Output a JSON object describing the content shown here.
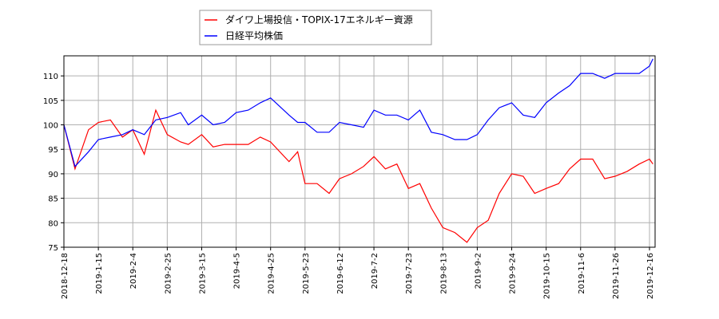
{
  "chart_data": {
    "type": "line",
    "title": "",
    "xlabel": "",
    "ylabel": "",
    "ylim": [
      75,
      114.1
    ],
    "yticks": [
      75,
      80,
      85,
      90,
      95,
      100,
      105,
      110
    ],
    "xticks": [
      "2018-12-18",
      "2019-1-15",
      "2019-2-4",
      "2019-2-25",
      "2019-3-15",
      "2019-4-5",
      "2019-4-25",
      "2019-5-23",
      "2019-6-12",
      "2019-7-2",
      "2019-7-23",
      "2019-8-13",
      "2019-9-2",
      "2019-9-24",
      "2019-10-15",
      "2019-11-6",
      "2019-11-26",
      "2019-12-16"
    ],
    "grid": true,
    "legend_position": "top-center",
    "x": [
      "2018-12-18",
      "2018-12-27",
      "2019-1-7",
      "2019-1-15",
      "2019-1-22",
      "2019-1-29",
      "2019-2-4",
      "2019-2-11",
      "2019-2-18",
      "2019-2-25",
      "2019-3-4",
      "2019-3-8",
      "2019-3-15",
      "2019-3-22",
      "2019-3-29",
      "2019-4-5",
      "2019-4-12",
      "2019-4-19",
      "2019-4-25",
      "2019-5-10",
      "2019-5-17",
      "2019-5-23",
      "2019-5-30",
      "2019-6-6",
      "2019-6-12",
      "2019-6-19",
      "2019-6-26",
      "2019-7-2",
      "2019-7-9",
      "2019-7-16",
      "2019-7-23",
      "2019-7-30",
      "2019-8-6",
      "2019-8-13",
      "2019-8-20",
      "2019-8-27",
      "2019-9-2",
      "2019-9-9",
      "2019-9-16",
      "2019-9-24",
      "2019-10-1",
      "2019-10-8",
      "2019-10-15",
      "2019-10-23",
      "2019-10-30",
      "2019-11-6",
      "2019-11-13",
      "2019-11-20",
      "2019-11-26",
      "2019-12-3",
      "2019-12-10",
      "2019-12-16",
      "2019-12-18"
    ],
    "series": [
      {
        "name": "ダイワ上場投信・TOPIX-17エネルギー資源",
        "color": "#ff0000",
        "values": [
          100,
          91,
          99,
          100.5,
          101,
          97.5,
          99,
          94,
          103,
          98,
          96.5,
          96,
          98,
          95.5,
          96,
          96,
          96,
          97.5,
          96.5,
          92.5,
          94.5,
          88,
          88,
          86,
          89,
          90,
          91.5,
          93.5,
          91,
          92,
          87,
          88,
          83,
          79,
          78,
          76,
          79,
          80.5,
          86,
          90,
          89.5,
          86,
          87,
          88,
          91,
          93,
          93,
          89,
          89.5,
          90.5,
          92,
          93,
          92
        ]
      },
      {
        "name": "日経平均株価",
        "color": "#0000ff",
        "values": [
          100,
          91.5,
          94.5,
          97,
          97.5,
          98,
          99,
          98,
          101,
          101.5,
          102.5,
          100,
          102,
          100,
          100.5,
          102.5,
          103,
          104.5,
          105.5,
          102,
          100.5,
          100.5,
          98.5,
          98.5,
          100.5,
          100,
          99.5,
          103,
          102,
          102,
          101,
          103,
          98.5,
          98,
          97,
          97,
          98,
          101,
          103.5,
          104.5,
          102,
          101.5,
          104.5,
          106.5,
          108,
          110.5,
          110.5,
          109.5,
          110.5,
          110.5,
          110.5,
          112,
          113.5
        ]
      }
    ]
  }
}
